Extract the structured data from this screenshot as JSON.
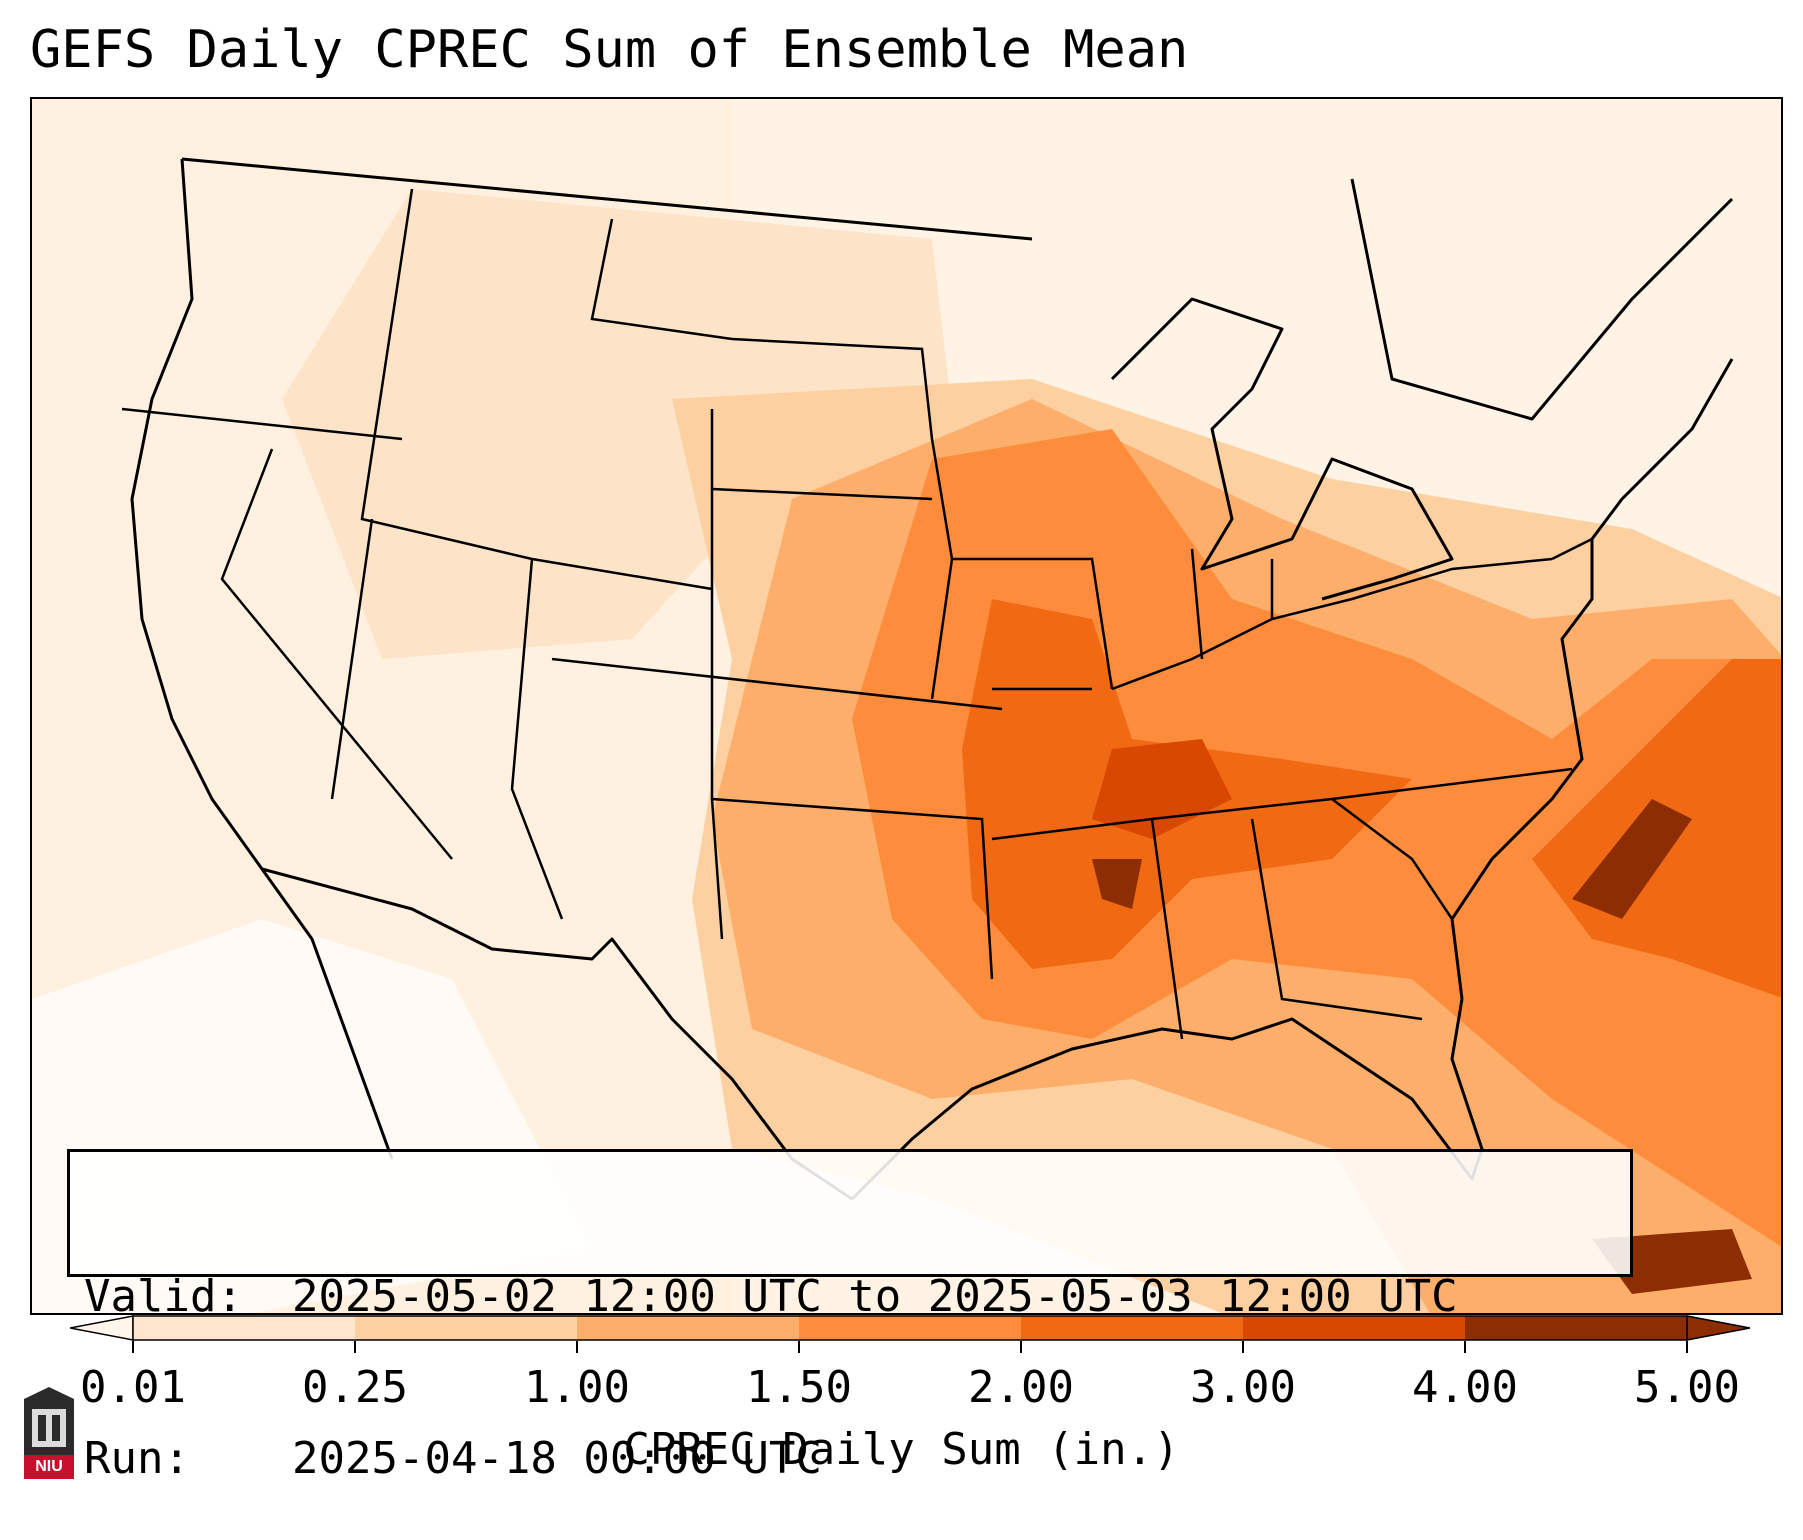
{
  "title": "GEFS Daily CPREC Sum of Ensemble Mean",
  "info": {
    "valid_label": "Valid:",
    "valid_value": "2025-05-02 12:00 UTC to 2025-05-03 12:00 UTC",
    "run_label": "Run:",
    "run_value": "2025-04-18 00:00 UTC"
  },
  "colorbar": {
    "label": "CPREC Daily Sum (in.)",
    "ticks": [
      "0.01",
      "0.25",
      "1.00",
      "1.50",
      "2.00",
      "3.00",
      "4.00",
      "5.00"
    ],
    "colors": [
      "#fff5eb",
      "#fee6ce",
      "#fdd0a2",
      "#fdae6b",
      "#fd8d3c",
      "#f16913",
      "#d94801",
      "#8c2d04"
    ],
    "extend": "both"
  },
  "logo": {
    "text": "NIU",
    "color": "#c8102e"
  }
}
